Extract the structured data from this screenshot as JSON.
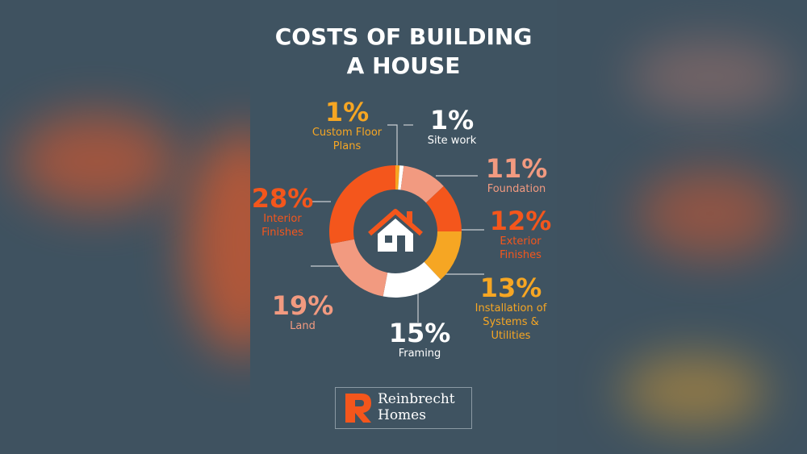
{
  "chart_data": {
    "type": "donut",
    "title": "COSTS OF BUILDING A HOUSE",
    "categories": [
      "Custom Floor Plans",
      "Site work",
      "Foundation",
      "Exterior Finishes",
      "Installation of Systems & Utilities",
      "Framing",
      "Land",
      "Interior Finishes"
    ],
    "values": [
      1,
      1,
      11,
      12,
      13,
      15,
      19,
      28
    ],
    "value_labels": [
      "1%",
      "1%",
      "11%",
      "12%",
      "13%",
      "15%",
      "19%",
      "28%"
    ],
    "colors": [
      "#f6a623",
      "#ffffff",
      "#f29a80",
      "#f4561c",
      "#f6a623",
      "#ffffff",
      "#f29a80",
      "#f4561c"
    ]
  },
  "logo": {
    "name": "Reinbrecht",
    "suffix": "Homes"
  }
}
